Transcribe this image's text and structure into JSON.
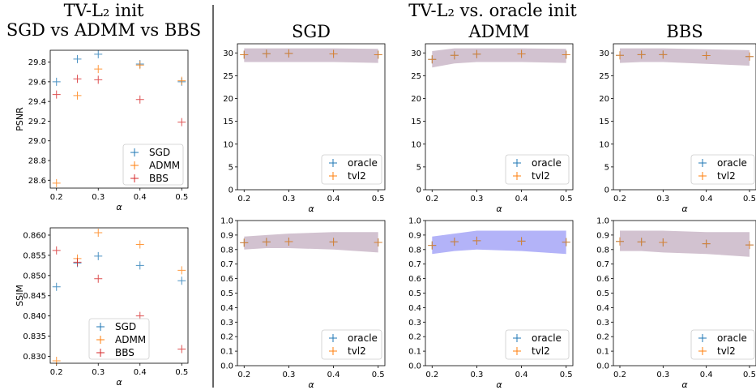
{
  "headers": {
    "left_line1": "TV-L₂ init",
    "left_line2": "SGD vs ADMM vs BBS",
    "right_line1": "TV-L₂ vs. oracle init"
  },
  "colors": {
    "sgd": "#1f77b4",
    "admm": "#ff7f0e",
    "bbs": "#d62728",
    "band_purple": "#c3adc0",
    "band_blue": "#9a9af5"
  },
  "chart_data": [
    {
      "id": "psnr_compare",
      "type": "scatter",
      "title": "",
      "xlabel": "α",
      "ylabel": "PSNR",
      "xlim": [
        0.185,
        0.515
      ],
      "ylim": [
        28.52,
        29.92
      ],
      "xticks": [
        0.2,
        0.3,
        0.4,
        0.5
      ],
      "yticks": [
        28.6,
        28.8,
        29.0,
        29.2,
        29.4,
        29.6,
        29.8
      ],
      "ytick_labels": [
        "28.6",
        "28.8",
        "29.0",
        "29.2",
        "29.4",
        "29.6",
        "29.8"
      ],
      "legend_position": "lower-right",
      "series": [
        {
          "name": "SGD",
          "color": "sgd",
          "x": [
            0.2,
            0.25,
            0.3,
            0.4,
            0.5
          ],
          "y": [
            29.6,
            29.83,
            29.88,
            29.78,
            29.6
          ]
        },
        {
          "name": "ADMM",
          "color": "admm",
          "x": [
            0.2,
            0.25,
            0.3,
            0.4,
            0.5
          ],
          "y": [
            28.57,
            29.46,
            29.73,
            29.77,
            29.61
          ]
        },
        {
          "name": "BBS",
          "color": "bbs",
          "x": [
            0.2,
            0.25,
            0.3,
            0.4,
            0.5
          ],
          "y": [
            29.47,
            29.63,
            29.62,
            29.42,
            29.19
          ]
        }
      ]
    },
    {
      "id": "ssim_compare",
      "type": "scatter",
      "title": "",
      "xlabel": "α",
      "ylabel": "SSIM",
      "xlim": [
        0.185,
        0.515
      ],
      "ylim": [
        0.8283,
        0.8618
      ],
      "xticks": [
        0.2,
        0.3,
        0.4,
        0.5
      ],
      "yticks": [
        0.83,
        0.835,
        0.84,
        0.845,
        0.85,
        0.855,
        0.86
      ],
      "ytick_labels": [
        "0.830",
        "0.835",
        "0.840",
        "0.845",
        "0.850",
        "0.855",
        "0.860"
      ],
      "legend_position": "lower-center",
      "series": [
        {
          "name": "SGD",
          "color": "sgd",
          "x": [
            0.2,
            0.25,
            0.3,
            0.4,
            0.5
          ],
          "y": [
            0.8472,
            0.8531,
            0.8548,
            0.8525,
            0.8487
          ]
        },
        {
          "name": "ADMM",
          "color": "admm",
          "x": [
            0.2,
            0.25,
            0.3,
            0.4,
            0.5
          ],
          "y": [
            0.8289,
            0.8542,
            0.8606,
            0.8577,
            0.8513
          ]
        },
        {
          "name": "BBS",
          "color": "bbs",
          "x": [
            0.2,
            0.25,
            0.3,
            0.4,
            0.5
          ],
          "y": [
            0.8562,
            0.8533,
            0.8492,
            0.84,
            0.8318
          ]
        }
      ]
    },
    {
      "id": "psnr_sgd",
      "type": "scatter",
      "title": "SGD",
      "xlabel": "α",
      "ylabel": "",
      "xlim": [
        0.185,
        0.515
      ],
      "ylim": [
        0,
        32
      ],
      "xticks": [
        0.2,
        0.3,
        0.4,
        0.5
      ],
      "yticks": [
        0,
        5,
        10,
        15,
        20,
        25,
        30
      ],
      "ytick_labels": [
        "0",
        "5",
        "10",
        "15",
        "20",
        "25",
        "30"
      ],
      "legend_position": "lower-right",
      "band": {
        "color": "band_purple",
        "x": [
          0.2,
          0.25,
          0.3,
          0.4,
          0.5
        ],
        "lower": [
          28.0,
          28.0,
          28.0,
          28.0,
          27.8
        ],
        "upper": [
          31.0,
          31.0,
          31.0,
          31.0,
          30.9
        ]
      },
      "series": [
        {
          "name": "oracle",
          "color": "sgd",
          "x": [
            0.2,
            0.25,
            0.3,
            0.4,
            0.5
          ],
          "y": [
            29.6,
            29.83,
            29.88,
            29.78,
            29.6
          ]
        },
        {
          "name": "tvl2",
          "color": "admm",
          "x": [
            0.2,
            0.25,
            0.3,
            0.4,
            0.5
          ],
          "y": [
            29.6,
            29.83,
            29.88,
            29.78,
            29.6
          ]
        }
      ]
    },
    {
      "id": "psnr_admm",
      "type": "scatter",
      "title": "ADMM",
      "xlabel": "α",
      "ylabel": "",
      "xlim": [
        0.185,
        0.515
      ],
      "ylim": [
        0,
        32
      ],
      "xticks": [
        0.2,
        0.3,
        0.4,
        0.5
      ],
      "yticks": [
        0,
        5,
        10,
        15,
        20,
        25,
        30
      ],
      "ytick_labels": [
        "0",
        "5",
        "10",
        "15",
        "20",
        "25",
        "30"
      ],
      "legend_position": "lower-right",
      "band": {
        "color": "band_purple",
        "x": [
          0.2,
          0.25,
          0.3,
          0.4,
          0.5
        ],
        "lower": [
          26.8,
          27.7,
          28.0,
          28.0,
          27.8
        ],
        "upper": [
          30.4,
          31.0,
          31.0,
          31.0,
          30.9
        ]
      },
      "series": [
        {
          "name": "oracle",
          "color": "sgd",
          "x": [
            0.2,
            0.25,
            0.3,
            0.4,
            0.5
          ],
          "y": [
            28.57,
            29.46,
            29.73,
            29.77,
            29.61
          ]
        },
        {
          "name": "tvl2",
          "color": "admm",
          "x": [
            0.2,
            0.25,
            0.3,
            0.4,
            0.5
          ],
          "y": [
            28.57,
            29.46,
            29.73,
            29.77,
            29.61
          ]
        }
      ]
    },
    {
      "id": "psnr_bbs",
      "type": "scatter",
      "title": "BBS",
      "xlabel": "α",
      "ylabel": "",
      "xlim": [
        0.185,
        0.515
      ],
      "ylim": [
        0,
        32
      ],
      "xticks": [
        0.2,
        0.3,
        0.4,
        0.5
      ],
      "yticks": [
        0,
        5,
        10,
        15,
        20,
        25,
        30
      ],
      "ytick_labels": [
        "0",
        "5",
        "10",
        "15",
        "20",
        "25",
        "30"
      ],
      "legend_position": "lower-right",
      "band": {
        "color": "band_purple",
        "x": [
          0.2,
          0.25,
          0.3,
          0.4,
          0.5
        ],
        "lower": [
          27.8,
          28.0,
          28.0,
          27.6,
          27.2
        ],
        "upper": [
          31.0,
          31.0,
          31.0,
          30.8,
          30.6
        ]
      },
      "series": [
        {
          "name": "oracle",
          "color": "sgd",
          "x": [
            0.2,
            0.25,
            0.3,
            0.4,
            0.5
          ],
          "y": [
            29.47,
            29.63,
            29.62,
            29.42,
            29.19
          ]
        },
        {
          "name": "tvl2",
          "color": "admm",
          "x": [
            0.2,
            0.25,
            0.3,
            0.4,
            0.5
          ],
          "y": [
            29.47,
            29.63,
            29.62,
            29.42,
            29.19
          ]
        }
      ]
    },
    {
      "id": "ssim_sgd",
      "type": "scatter",
      "title": "",
      "xlabel": "α",
      "ylabel": "",
      "xlim": [
        0.185,
        0.515
      ],
      "ylim": [
        0,
        1
      ],
      "xticks": [
        0.2,
        0.3,
        0.4,
        0.5
      ],
      "yticks": [
        0,
        0.1,
        0.2,
        0.3,
        0.4,
        0.5,
        0.6,
        0.7,
        0.8,
        0.9,
        1.0
      ],
      "ytick_labels": [
        "0.0",
        "0.1",
        "0.2",
        "0.3",
        "0.4",
        "0.5",
        "0.6",
        "0.7",
        "0.8",
        "0.9",
        "1.0"
      ],
      "legend_position": "lower-right",
      "band": {
        "color": "band_purple",
        "x": [
          0.2,
          0.25,
          0.3,
          0.4,
          0.5
        ],
        "lower": [
          0.8,
          0.81,
          0.81,
          0.8,
          0.78
        ],
        "upper": [
          0.89,
          0.9,
          0.91,
          0.92,
          0.92
        ]
      },
      "series": [
        {
          "name": "oracle",
          "color": "sgd",
          "x": [
            0.2,
            0.25,
            0.3,
            0.4,
            0.5
          ],
          "y": [
            0.847,
            0.853,
            0.855,
            0.853,
            0.849
          ]
        },
        {
          "name": "tvl2",
          "color": "admm",
          "x": [
            0.2,
            0.25,
            0.3,
            0.4,
            0.5
          ],
          "y": [
            0.847,
            0.853,
            0.855,
            0.853,
            0.849
          ]
        }
      ]
    },
    {
      "id": "ssim_admm",
      "type": "scatter",
      "title": "",
      "xlabel": "α",
      "ylabel": "",
      "xlim": [
        0.185,
        0.515
      ],
      "ylim": [
        0,
        1
      ],
      "xticks": [
        0.2,
        0.3,
        0.4,
        0.5
      ],
      "yticks": [
        0,
        0.1,
        0.2,
        0.3,
        0.4,
        0.5,
        0.6,
        0.7,
        0.8,
        0.9,
        1.0
      ],
      "ytick_labels": [
        "0.0",
        "0.1",
        "0.2",
        "0.3",
        "0.4",
        "0.5",
        "0.6",
        "0.7",
        "0.8",
        "0.9",
        "1.0"
      ],
      "legend_position": "lower-right",
      "band": {
        "color": "band_blue",
        "x": [
          0.2,
          0.25,
          0.3,
          0.4,
          0.5
        ],
        "lower": [
          0.77,
          0.79,
          0.8,
          0.79,
          0.77
        ],
        "upper": [
          0.89,
          0.91,
          0.93,
          0.93,
          0.93
        ]
      },
      "series": [
        {
          "name": "oracle",
          "color": "sgd",
          "x": [
            0.2,
            0.25,
            0.3,
            0.4,
            0.5
          ],
          "y": [
            0.829,
            0.854,
            0.861,
            0.858,
            0.851
          ]
        },
        {
          "name": "tvl2",
          "color": "admm",
          "x": [
            0.2,
            0.25,
            0.3,
            0.4,
            0.5
          ],
          "y": [
            0.829,
            0.854,
            0.861,
            0.858,
            0.851
          ]
        }
      ]
    },
    {
      "id": "ssim_bbs",
      "type": "scatter",
      "title": "",
      "xlabel": "α",
      "ylabel": "",
      "xlim": [
        0.185,
        0.515
      ],
      "ylim": [
        0,
        1
      ],
      "xticks": [
        0.2,
        0.3,
        0.4,
        0.5
      ],
      "yticks": [
        0,
        0.1,
        0.2,
        0.3,
        0.4,
        0.5,
        0.6,
        0.7,
        0.8,
        0.9,
        1.0
      ],
      "ytick_labels": [
        "0.0",
        "0.1",
        "0.2",
        "0.3",
        "0.4",
        "0.5",
        "0.6",
        "0.7",
        "0.8",
        "0.9",
        "1.0"
      ],
      "legend_position": "lower-right",
      "band": {
        "color": "band_purple",
        "x": [
          0.2,
          0.25,
          0.3,
          0.4,
          0.5
        ],
        "lower": [
          0.79,
          0.79,
          0.78,
          0.77,
          0.75
        ],
        "upper": [
          0.93,
          0.93,
          0.93,
          0.92,
          0.92
        ]
      },
      "series": [
        {
          "name": "oracle",
          "color": "sgd",
          "x": [
            0.2,
            0.25,
            0.3,
            0.4,
            0.5
          ],
          "y": [
            0.856,
            0.853,
            0.849,
            0.84,
            0.832
          ]
        },
        {
          "name": "tvl2",
          "color": "admm",
          "x": [
            0.2,
            0.25,
            0.3,
            0.4,
            0.5
          ],
          "y": [
            0.856,
            0.853,
            0.849,
            0.84,
            0.832
          ]
        }
      ]
    }
  ]
}
